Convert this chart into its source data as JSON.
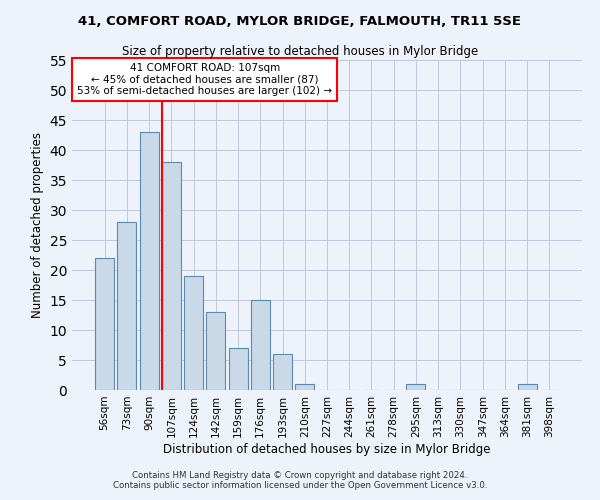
{
  "title1": "41, COMFORT ROAD, MYLOR BRIDGE, FALMOUTH, TR11 5SE",
  "title2": "Size of property relative to detached houses in Mylor Bridge",
  "xlabel": "Distribution of detached houses by size in Mylor Bridge",
  "ylabel": "Number of detached properties",
  "bar_labels": [
    "56sqm",
    "73sqm",
    "90sqm",
    "107sqm",
    "124sqm",
    "142sqm",
    "159sqm",
    "176sqm",
    "193sqm",
    "210sqm",
    "227sqm",
    "244sqm",
    "261sqm",
    "278sqm",
    "295sqm",
    "313sqm",
    "330sqm",
    "347sqm",
    "364sqm",
    "381sqm",
    "398sqm"
  ],
  "bar_values": [
    22,
    28,
    43,
    38,
    19,
    13,
    7,
    15,
    6,
    1,
    0,
    0,
    0,
    0,
    1,
    0,
    0,
    0,
    0,
    1,
    0
  ],
  "bar_color": "#c9d9e8",
  "bar_edgecolor": "#5a8ab0",
  "background_color": "#eef2fa",
  "grid_color": "#c0c8d8",
  "vline_color": "red",
  "annotation_text": "41 COMFORT ROAD: 107sqm\n← 45% of detached houses are smaller (87)\n53% of semi-detached houses are larger (102) →",
  "annotation_box_color": "white",
  "annotation_box_edgecolor": "red",
  "ylim": [
    0,
    55
  ],
  "yticks": [
    0,
    5,
    10,
    15,
    20,
    25,
    30,
    35,
    40,
    45,
    50,
    55
  ],
  "footer1": "Contains HM Land Registry data © Crown copyright and database right 2024.",
  "footer2": "Contains public sector information licensed under the Open Government Licence v3.0."
}
